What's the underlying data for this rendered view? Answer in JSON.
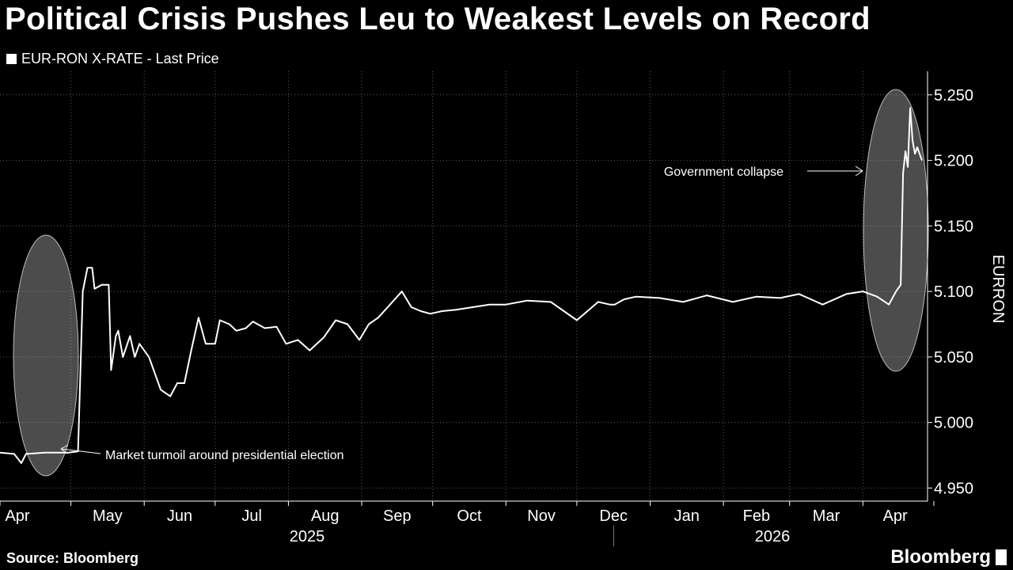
{
  "title": "Political Crisis Pushes Leu to Weakest Levels on Record",
  "legend_label": "EUR-RON X-RATE - Last Price",
  "source": "Source: Bloomberg",
  "brand": "Bloomberg",
  "colors": {
    "background": "#000000",
    "line": "#ffffff",
    "grid": "#5a5a5a"
  },
  "chart_data": {
    "type": "line",
    "title": "Political Crisis Pushes Leu to Weakest Levels on Record",
    "ylabel": "EURRON",
    "ylim": [
      4.94,
      5.27
    ],
    "y_ticks": [
      "4.950",
      "5.000",
      "5.050",
      "5.100",
      "5.150",
      "5.200",
      "5.250"
    ],
    "x_ticks": [
      "Apr",
      "May",
      "Jun",
      "Jul",
      "Aug",
      "Sep",
      "Oct",
      "Nov",
      "Dec",
      "Jan",
      "Feb",
      "Mar",
      "Apr"
    ],
    "year_labels": [
      "2025",
      "2026"
    ],
    "grid": true,
    "legend_position": "top-left",
    "series": [
      {
        "name": "EUR-RON X-RATE - Last Price",
        "x": [
          "2025-04-01",
          "2025-04-07",
          "2025-04-10",
          "2025-04-12",
          "2025-04-20",
          "2025-04-30",
          "2025-05-04",
          "2025-05-06",
          "2025-05-08",
          "2025-05-10",
          "2025-05-11",
          "2025-05-14",
          "2025-05-17",
          "2025-05-18",
          "2025-05-20",
          "2025-05-21",
          "2025-05-23",
          "2025-05-26",
          "2025-05-28",
          "2025-05-30",
          "2025-06-03",
          "2025-06-08",
          "2025-06-12",
          "2025-06-15",
          "2025-06-18",
          "2025-06-21",
          "2025-06-24",
          "2025-06-27",
          "2025-07-01",
          "2025-07-03",
          "2025-07-07",
          "2025-07-10",
          "2025-07-14",
          "2025-07-17",
          "2025-07-22",
          "2025-07-27",
          "2025-07-31",
          "2025-08-05",
          "2025-08-10",
          "2025-08-16",
          "2025-08-21",
          "2025-08-26",
          "2025-08-31",
          "2025-09-04",
          "2025-09-08",
          "2025-09-13",
          "2025-09-18",
          "2025-09-22",
          "2025-09-26",
          "2025-09-30",
          "2025-10-05",
          "2025-10-11",
          "2025-10-18",
          "2025-10-25",
          "2025-11-01",
          "2025-11-10",
          "2025-11-20",
          "2025-12-01",
          "2025-12-10",
          "2025-12-15",
          "2025-12-17",
          "2025-12-19",
          "2025-12-21",
          "2025-12-26",
          "2026-01-05",
          "2026-01-15",
          "2026-01-25",
          "2026-02-05",
          "2026-02-15",
          "2026-02-25",
          "2026-03-05",
          "2026-03-15",
          "2026-03-25",
          "2026-04-01",
          "2026-04-07",
          "2026-04-12",
          "2026-04-15",
          "2026-04-17",
          "2026-04-18",
          "2026-04-19",
          "2026-04-20",
          "2026-04-21",
          "2026-04-22",
          "2026-04-23",
          "2026-04-24",
          "2026-04-25",
          "2026-04-26"
        ],
        "values": [
          4.977,
          4.976,
          4.969,
          4.976,
          4.977,
          4.977,
          4.978,
          5.1,
          5.118,
          5.118,
          5.102,
          5.105,
          5.105,
          5.04,
          5.066,
          5.07,
          5.05,
          5.066,
          5.05,
          5.06,
          5.05,
          5.025,
          5.02,
          5.03,
          5.03,
          5.056,
          5.08,
          5.06,
          5.06,
          5.078,
          5.075,
          5.07,
          5.072,
          5.077,
          5.072,
          5.073,
          5.06,
          5.063,
          5.055,
          5.065,
          5.078,
          5.075,
          5.063,
          5.075,
          5.08,
          5.09,
          5.1,
          5.088,
          5.085,
          5.083,
          5.085,
          5.086,
          5.088,
          5.09,
          5.09,
          5.093,
          5.092,
          5.078,
          5.092,
          5.09,
          5.09,
          5.092,
          5.094,
          5.096,
          5.095,
          5.092,
          5.097,
          5.092,
          5.096,
          5.095,
          5.098,
          5.09,
          5.098,
          5.1,
          5.096,
          5.09,
          5.1,
          5.105,
          5.19,
          5.207,
          5.195,
          5.24,
          5.215,
          5.205,
          5.21,
          5.205,
          5.2
        ]
      }
    ],
    "annotations": [
      {
        "text": "Market turmoil around presidential election",
        "x": "2025-05-07",
        "y": 4.98
      },
      {
        "text": "Government collapse",
        "x": "2026-04-20",
        "y": 5.195
      }
    ]
  }
}
